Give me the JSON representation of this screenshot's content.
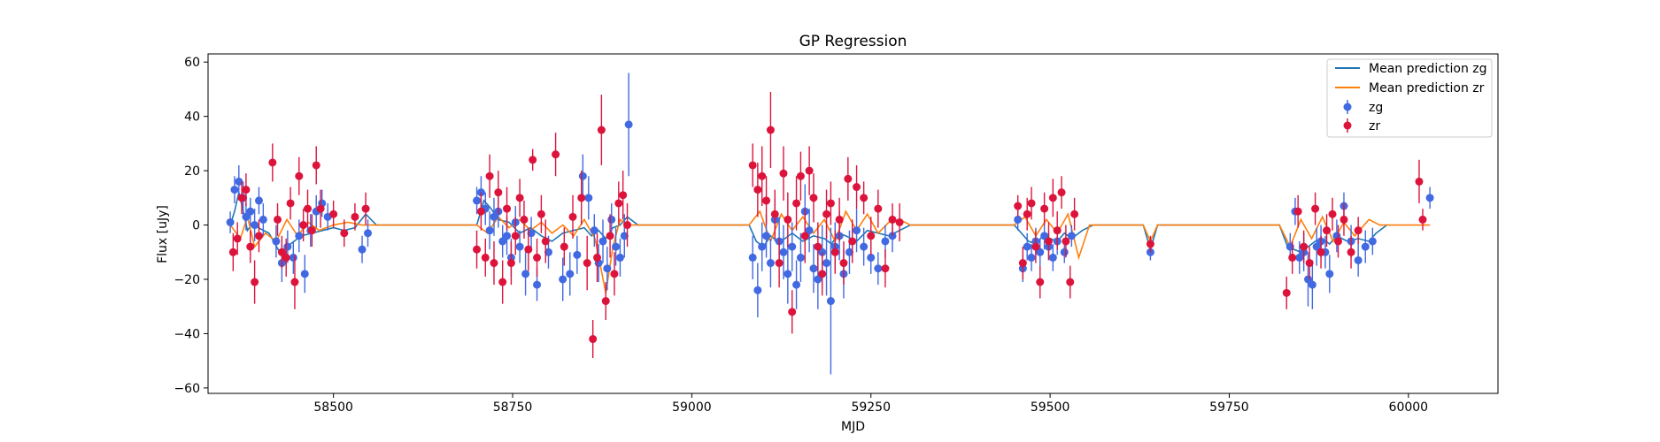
{
  "chart_data": {
    "type": "scatter",
    "title": "GP Regression",
    "xlabel": "MJD",
    "ylabel": "Flux [uJy]",
    "xlim": [
      58325,
      60125
    ],
    "ylim": [
      -62,
      63
    ],
    "xticks": [
      58500,
      58750,
      59000,
      59250,
      59500,
      59750,
      60000
    ],
    "yticks": [
      -60,
      -40,
      -20,
      0,
      20,
      40,
      60
    ],
    "grid": false,
    "legend_position": "top-right",
    "colors": {
      "zg_points": "#4169e1",
      "zr_points": "#dc143c",
      "zg_mean": "#1f77b4",
      "zr_mean": "#ff7f0e"
    },
    "series": [
      {
        "name": "Mean prediction zg",
        "kind": "line",
        "color": "#1f77b4",
        "x": [
          58356,
          58362,
          58368,
          58375,
          58380,
          58388,
          58395,
          58410,
          58425,
          58440,
          58455,
          58470,
          58485,
          58500,
          58515,
          58530,
          58545,
          58560,
          58700,
          58710,
          58720,
          58730,
          58745,
          58760,
          58775,
          58790,
          58805,
          58820,
          58835,
          58850,
          58860,
          58870,
          58880,
          58890,
          58900,
          58910,
          58925,
          59080,
          59090,
          59100,
          59110,
          59120,
          59130,
          59140,
          59155,
          59170,
          59185,
          59195,
          59205,
          59215,
          59230,
          59245,
          59260,
          59275,
          59290,
          59305,
          59450,
          59460,
          59470,
          59480,
          59490,
          59500,
          59510,
          59520,
          59530,
          59545,
          59560,
          59630,
          59640,
          59650,
          59820,
          59830,
          59840,
          59850,
          59860,
          59870,
          59880,
          59890,
          59900,
          59915,
          59930,
          59945,
          59955,
          59970
        ],
        "y": [
          0,
          5,
          12,
          4,
          -2,
          1,
          -1,
          -3,
          -10,
          -7,
          -4,
          -3,
          -2,
          -1,
          -2,
          -1,
          4,
          0,
          0,
          9,
          6,
          2,
          1,
          -3,
          -1,
          -4,
          -6,
          -3,
          -2,
          -1,
          -4,
          -2,
          -5,
          -1,
          0,
          3,
          0,
          0,
          -6,
          -8,
          -4,
          -6,
          -5,
          -3,
          -6,
          -4,
          -5,
          -7,
          -3,
          -4,
          -6,
          -2,
          -3,
          -4,
          -2,
          0,
          0,
          -3,
          -6,
          -7,
          -4,
          -5,
          -6,
          -3,
          -5,
          -2,
          0,
          0,
          -9,
          0,
          0,
          -7,
          -9,
          -10,
          -8,
          -6,
          -5,
          -7,
          -4,
          -6,
          -5,
          -6,
          -3,
          0
        ]
      },
      {
        "name": "Mean prediction zr",
        "kind": "line",
        "color": "#ff7f0e",
        "x": [
          58356,
          58370,
          58380,
          58390,
          58405,
          58420,
          58435,
          58450,
          58465,
          58480,
          58500,
          58520,
          58540,
          58560,
          58700,
          58715,
          58730,
          58745,
          58760,
          58775,
          58790,
          58805,
          58820,
          58835,
          58850,
          58865,
          58880,
          58890,
          58900,
          58910,
          58930,
          59080,
          59095,
          59110,
          59125,
          59140,
          59155,
          59170,
          59185,
          59200,
          59215,
          59230,
          59245,
          59260,
          59275,
          59290,
          59305,
          59450,
          59465,
          59480,
          59495,
          59510,
          59525,
          59540,
          59555,
          59630,
          59640,
          59650,
          59820,
          59835,
          59850,
          59865,
          59880,
          59895,
          59910,
          59925,
          59945,
          59960,
          60020,
          60030
        ],
        "y": [
          0,
          -5,
          3,
          -8,
          -3,
          -6,
          2,
          -4,
          1,
          -2,
          0,
          1,
          0,
          0,
          0,
          -3,
          3,
          -1,
          2,
          -2,
          1,
          -3,
          0,
          -4,
          2,
          -5,
          -25,
          -8,
          2,
          0,
          0,
          0,
          5,
          -6,
          4,
          -2,
          3,
          -3,
          2,
          -6,
          5,
          -2,
          4,
          -3,
          1,
          2,
          0,
          0,
          3,
          -4,
          2,
          -3,
          4,
          -12,
          0,
          0,
          -6,
          0,
          0,
          -8,
          2,
          -5,
          3,
          -6,
          1,
          -4,
          2,
          0,
          0,
          0
        ]
      },
      {
        "name": "zg",
        "kind": "errorbar",
        "color": "#4169e1",
        "x": [
          58356,
          58362,
          58368,
          58374,
          58378,
          58384,
          58390,
          58396,
          58402,
          58420,
          58428,
          58436,
          58444,
          58452,
          58460,
          58468,
          58476,
          58484,
          58492,
          58540,
          58548,
          58700,
          58706,
          58712,
          58718,
          58724,
          58730,
          58736,
          58742,
          58748,
          58754,
          58760,
          58768,
          58776,
          58784,
          58800,
          58820,
          58830,
          58840,
          58848,
          58856,
          58864,
          58870,
          58876,
          58882,
          58888,
          58894,
          58900,
          58906,
          58912,
          59085,
          59092,
          59098,
          59104,
          59110,
          59116,
          59122,
          59128,
          59134,
          59140,
          59146,
          59152,
          59158,
          59164,
          59170,
          59176,
          59182,
          59188,
          59194,
          59200,
          59206,
          59212,
          59220,
          59230,
          59240,
          59250,
          59260,
          59270,
          59280,
          59455,
          59462,
          59468,
          59474,
          59480,
          59486,
          59492,
          59498,
          59504,
          59510,
          59520,
          59530,
          59640,
          59835,
          59842,
          59848,
          59854,
          59860,
          59866,
          59872,
          59878,
          59884,
          59890,
          59900,
          59910,
          59920,
          59930,
          59940,
          59950,
          60030
        ],
        "y": [
          1,
          13,
          16,
          10,
          3,
          5,
          0,
          9,
          2,
          -6,
          -14,
          -8,
          -12,
          -4,
          -18,
          -2,
          5,
          8,
          3,
          -9,
          -3,
          9,
          12,
          6,
          -2,
          3,
          5,
          -6,
          -4,
          -12,
          1,
          -8,
          -18,
          -3,
          -22,
          -10,
          -20,
          -18,
          -11,
          18,
          10,
          -2,
          -14,
          -6,
          -16,
          2,
          -8,
          -12,
          -4,
          37,
          -12,
          -24,
          -8,
          -4,
          -14,
          2,
          -6,
          -10,
          -18,
          -8,
          -22,
          -12,
          5,
          -2,
          -16,
          -20,
          -10,
          -14,
          -28,
          -8,
          -4,
          -18,
          -10,
          -2,
          -8,
          -12,
          -16,
          -6,
          -4,
          2,
          -16,
          -8,
          -12,
          -6,
          -10,
          -4,
          -8,
          -12,
          -6,
          -10,
          -4,
          -10,
          -8,
          5,
          -12,
          -10,
          -20,
          -22,
          -8,
          -6,
          -10,
          -18,
          -4,
          7,
          -6,
          -13,
          -8,
          -6,
          10
        ],
        "yerr": [
          4,
          5,
          6,
          6,
          5,
          5,
          6,
          5,
          6,
          6,
          7,
          6,
          6,
          6,
          7,
          6,
          6,
          5,
          5,
          5,
          5,
          5,
          6,
          6,
          7,
          7,
          6,
          6,
          7,
          7,
          6,
          6,
          8,
          6,
          6,
          6,
          8,
          8,
          7,
          8,
          8,
          6,
          7,
          8,
          8,
          6,
          7,
          7,
          8,
          19,
          8,
          10,
          9,
          8,
          9,
          8,
          9,
          10,
          11,
          9,
          9,
          9,
          10,
          8,
          9,
          11,
          10,
          12,
          27,
          9,
          9,
          9,
          8,
          8,
          7,
          6,
          6,
          6,
          6,
          4,
          5,
          5,
          5,
          5,
          5,
          5,
          5,
          5,
          5,
          4,
          4,
          3,
          5,
          5,
          6,
          7,
          10,
          9,
          7,
          6,
          6,
          7,
          6,
          5,
          6,
          6,
          6,
          5,
          4
        ]
      },
      {
        "name": "zr",
        "kind": "errorbar",
        "color": "#dc143c",
        "x": [
          58360,
          58366,
          58372,
          58378,
          58384,
          58390,
          58396,
          58415,
          58422,
          58428,
          58434,
          58440,
          58446,
          58452,
          58458,
          58464,
          58470,
          58476,
          58482,
          58500,
          58515,
          58530,
          58545,
          58700,
          58706,
          58712,
          58718,
          58724,
          58730,
          58736,
          58742,
          58748,
          58754,
          58760,
          58766,
          58772,
          58778,
          58784,
          58790,
          58796,
          58810,
          58822,
          58834,
          58846,
          58854,
          58862,
          58868,
          58874,
          58880,
          58886,
          58892,
          58898,
          58904,
          58910,
          59085,
          59092,
          59098,
          59104,
          59110,
          59116,
          59122,
          59128,
          59134,
          59140,
          59146,
          59152,
          59158,
          59164,
          59170,
          59176,
          59182,
          59188,
          59194,
          59200,
          59206,
          59212,
          59218,
          59224,
          59230,
          59240,
          59250,
          59260,
          59270,
          59280,
          59290,
          59455,
          59462,
          59468,
          59474,
          59480,
          59486,
          59492,
          59498,
          59504,
          59510,
          59516,
          59522,
          59528,
          59534,
          59640,
          59830,
          59838,
          59846,
          59854,
          59862,
          59870,
          59878,
          59886,
          59894,
          59902,
          59910,
          59920,
          59930,
          60015,
          60020
        ],
        "y": [
          -10,
          -5,
          10,
          13,
          -8,
          -21,
          -4,
          23,
          2,
          -10,
          -12,
          8,
          -21,
          18,
          0,
          6,
          -2,
          22,
          6,
          4,
          -3,
          3,
          6,
          -9,
          5,
          -12,
          18,
          -14,
          12,
          -21,
          6,
          -14,
          -4,
          10,
          2,
          -9,
          24,
          -12,
          4,
          -6,
          26,
          -8,
          3,
          10,
          -14,
          -42,
          -12,
          35,
          -28,
          -4,
          -18,
          8,
          11,
          0,
          22,
          13,
          18,
          9,
          35,
          4,
          -14,
          19,
          2,
          -32,
          8,
          18,
          -4,
          20,
          10,
          -8,
          -18,
          4,
          8,
          -10,
          2,
          -14,
          17,
          -6,
          14,
          10,
          -4,
          6,
          -16,
          2,
          1,
          7,
          -14,
          4,
          8,
          -8,
          -21,
          6,
          -6,
          10,
          -2,
          12,
          -6,
          -21,
          4,
          -7,
          -25,
          -12,
          5,
          -8,
          -14,
          6,
          -10,
          -2,
          4,
          -6,
          2,
          -10,
          -2,
          16,
          2
        ],
        "yerr": [
          7,
          6,
          6,
          6,
          6,
          8,
          6,
          7,
          6,
          6,
          7,
          6,
          10,
          7,
          6,
          7,
          6,
          7,
          7,
          5,
          5,
          5,
          6,
          7,
          7,
          7,
          8,
          8,
          8,
          8,
          8,
          8,
          7,
          7,
          7,
          8,
          4,
          7,
          7,
          8,
          8,
          7,
          8,
          10,
          10,
          7,
          9,
          13,
          7,
          8,
          8,
          8,
          9,
          8,
          8,
          10,
          11,
          9,
          14,
          9,
          9,
          10,
          10,
          8,
          10,
          9,
          10,
          9,
          9,
          9,
          8,
          9,
          8,
          8,
          8,
          8,
          8,
          8,
          8,
          6,
          7,
          7,
          7,
          6,
          7,
          4,
          6,
          6,
          6,
          6,
          6,
          6,
          7,
          7,
          7,
          6,
          6,
          6,
          6,
          3,
          6,
          6,
          6,
          6,
          6,
          6,
          6,
          6,
          6,
          6,
          6,
          6,
          5,
          8,
          4
        ]
      }
    ]
  }
}
